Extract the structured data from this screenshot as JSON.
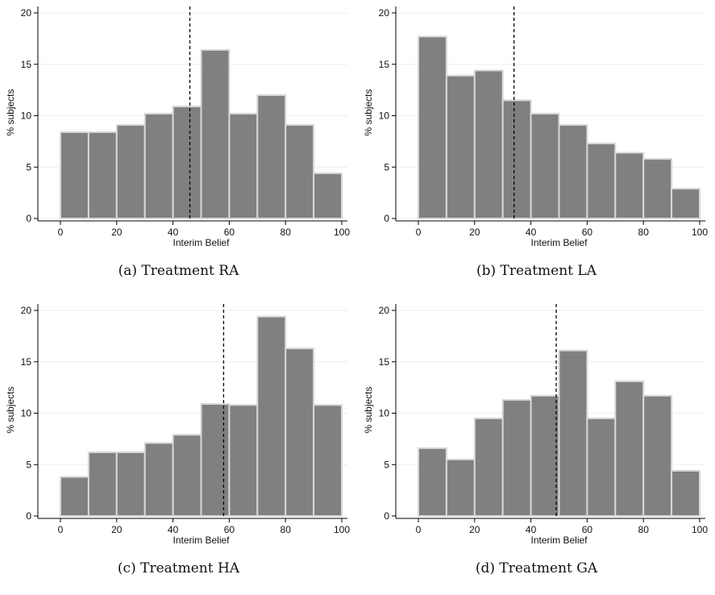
{
  "chart_data": [
    {
      "type": "bar",
      "caption": "(a) Treatment RA",
      "xlabel": "Interim Belief",
      "ylabel": "% subjects",
      "xlim": [
        0,
        100
      ],
      "ylim": [
        0,
        20
      ],
      "xticks": [
        0,
        20,
        40,
        60,
        80,
        100
      ],
      "yticks": [
        0,
        5,
        10,
        15,
        20
      ],
      "bin_edges": [
        0,
        10,
        20,
        30,
        40,
        50,
        60,
        70,
        80,
        90,
        100
      ],
      "values": [
        8.4,
        8.4,
        9.1,
        10.2,
        10.9,
        16.4,
        10.2,
        12.0,
        9.1,
        4.4
      ],
      "reference_line_x": 46,
      "bar_color": "#808080",
      "edge_color": "#d8d8d8"
    },
    {
      "type": "bar",
      "caption": "(b) Treatment LA",
      "xlabel": "Interim Belief",
      "ylabel": "% subjects",
      "xlim": [
        0,
        100
      ],
      "ylim": [
        0,
        20
      ],
      "xticks": [
        0,
        20,
        40,
        60,
        80,
        100
      ],
      "yticks": [
        0,
        5,
        10,
        15,
        20
      ],
      "bin_edges": [
        0,
        10,
        20,
        30,
        40,
        50,
        60,
        70,
        80,
        90,
        100
      ],
      "values": [
        17.7,
        13.9,
        14.4,
        11.5,
        10.2,
        9.1,
        7.3,
        6.4,
        5.8,
        2.9
      ],
      "reference_line_x": 34,
      "bar_color": "#808080",
      "edge_color": "#d8d8d8"
    },
    {
      "type": "bar",
      "caption": "(c) Treatment HA",
      "xlabel": "Interim Belief",
      "ylabel": "% subjects",
      "xlim": [
        0,
        100
      ],
      "ylim": [
        0,
        20
      ],
      "xticks": [
        0,
        20,
        40,
        60,
        80,
        100
      ],
      "yticks": [
        0,
        5,
        10,
        15,
        20
      ],
      "bin_edges": [
        0,
        10,
        20,
        30,
        40,
        50,
        60,
        70,
        80,
        90,
        100
      ],
      "values": [
        3.8,
        6.2,
        6.2,
        7.1,
        7.9,
        10.9,
        10.8,
        19.4,
        16.3,
        10.8
      ],
      "reference_line_x": 58,
      "bar_color": "#808080",
      "edge_color": "#d8d8d8"
    },
    {
      "type": "bar",
      "caption": "(d) Treatment GA",
      "xlabel": "Interim Belief",
      "ylabel": "% subjects",
      "xlim": [
        0,
        100
      ],
      "ylim": [
        0,
        20
      ],
      "xticks": [
        0,
        20,
        40,
        60,
        80,
        100
      ],
      "yticks": [
        0,
        5,
        10,
        15,
        20
      ],
      "bin_edges": [
        0,
        10,
        20,
        30,
        40,
        50,
        60,
        70,
        80,
        90,
        100
      ],
      "values": [
        6.6,
        5.5,
        9.5,
        11.3,
        11.7,
        16.1,
        9.5,
        13.1,
        11.7,
        4.4
      ],
      "reference_line_x": 49,
      "bar_color": "#808080",
      "edge_color": "#d8d8d8"
    }
  ]
}
